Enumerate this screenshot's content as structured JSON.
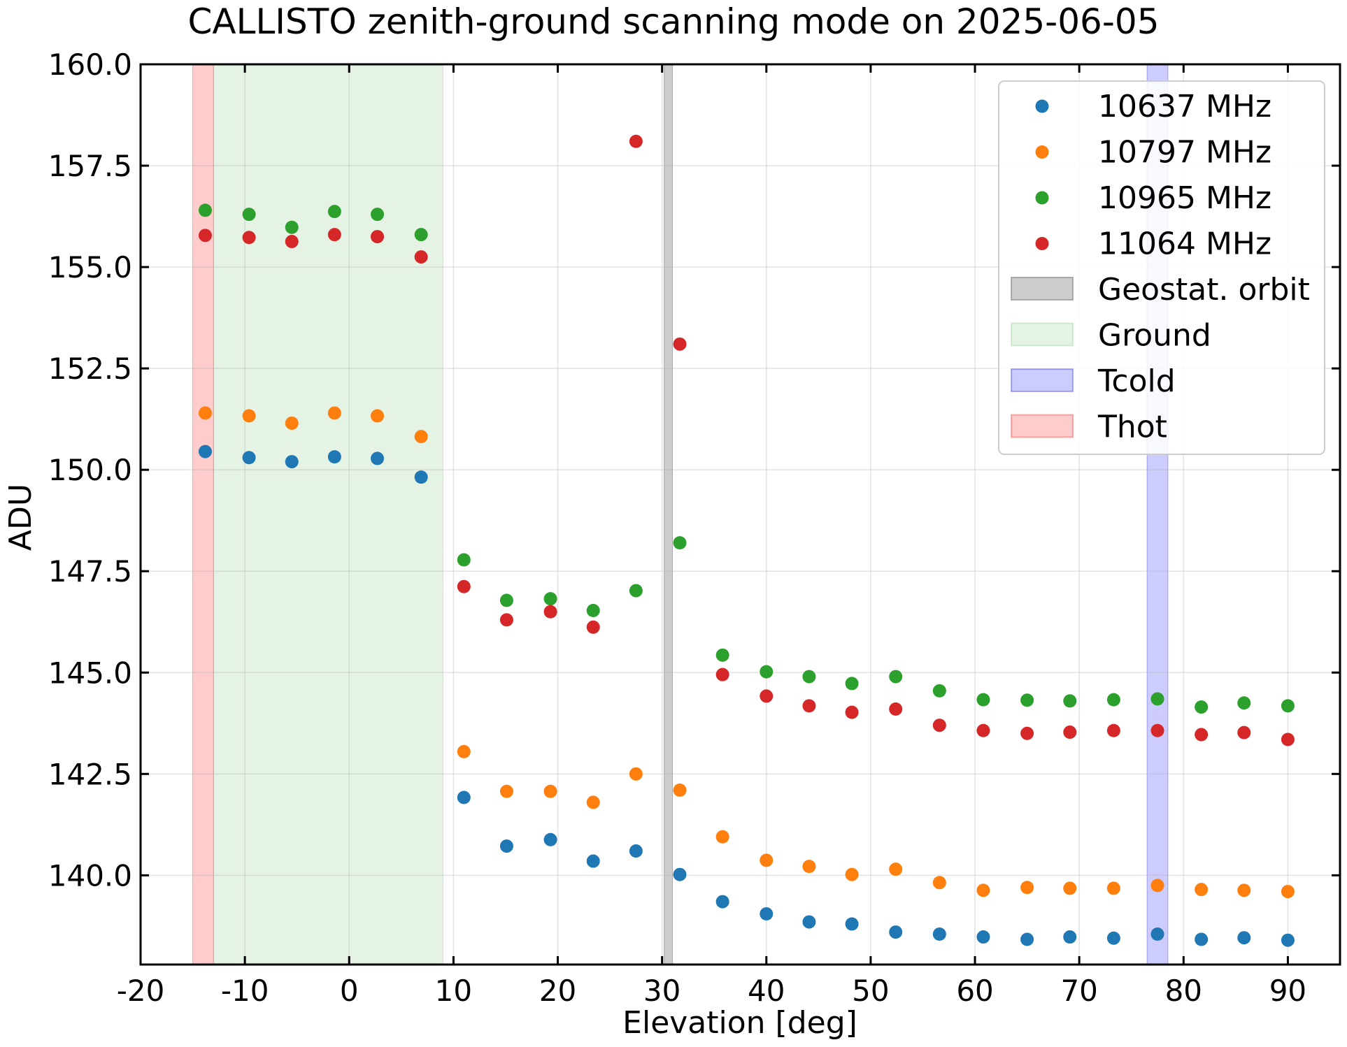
{
  "chart_data": {
    "type": "scatter",
    "title": "CALLISTO zenith-ground scanning mode on 2025-06-05",
    "xlabel": "Elevation [deg]",
    "ylabel": "ADU",
    "xlim": [
      -20,
      95
    ],
    "ylim": [
      137.8,
      160.0
    ],
    "xticks": [
      -20,
      -10,
      0,
      10,
      20,
      30,
      40,
      50,
      60,
      70,
      80,
      90
    ],
    "xtick_labels": [
      "-20",
      "-10",
      "0",
      "10",
      "20",
      "30",
      "40",
      "50",
      "60",
      "70",
      "80",
      "90"
    ],
    "yticks": [
      140.0,
      142.5,
      145.0,
      147.5,
      150.0,
      152.5,
      155.0,
      157.5,
      160.0
    ],
    "ytick_labels": [
      "140.0",
      "142.5",
      "145.0",
      "147.5",
      "150.0",
      "152.5",
      "155.0",
      "157.5",
      "160.0"
    ],
    "grid": true,
    "legend_position": "top-right",
    "x": [
      -13.8,
      -9.6,
      -5.5,
      -1.4,
      2.7,
      6.9,
      11.0,
      15.1,
      19.3,
      23.4,
      27.5,
      31.7,
      35.8,
      40.0,
      44.1,
      48.2,
      52.4,
      56.6,
      60.8,
      65.0,
      69.1,
      73.3,
      77.5,
      81.7,
      85.8,
      90.0
    ],
    "series": [
      {
        "name": "10637 MHz",
        "color": "#1f77b4",
        "values": [
          150.45,
          150.3,
          150.2,
          150.32,
          150.28,
          149.82,
          141.92,
          140.72,
          140.88,
          140.35,
          140.6,
          140.02,
          139.35,
          139.05,
          138.85,
          138.8,
          138.6,
          138.55,
          138.48,
          138.42,
          138.48,
          138.45,
          138.55,
          138.42,
          138.46,
          138.4
        ]
      },
      {
        "name": "10797 MHz",
        "color": "#ff7f0e",
        "values": [
          151.4,
          151.33,
          151.15,
          151.4,
          151.33,
          150.82,
          143.05,
          142.07,
          142.07,
          141.8,
          142.5,
          142.1,
          140.95,
          140.37,
          140.22,
          140.02,
          140.15,
          139.82,
          139.63,
          139.7,
          139.68,
          139.68,
          139.75,
          139.65,
          139.63,
          139.6
        ]
      },
      {
        "name": "10965 MHz",
        "color": "#2ca02c",
        "values": [
          156.4,
          156.3,
          155.98,
          156.37,
          156.3,
          155.8,
          147.78,
          146.78,
          146.82,
          146.53,
          147.02,
          148.2,
          145.43,
          145.02,
          144.9,
          144.73,
          144.9,
          144.55,
          144.33,
          144.32,
          144.3,
          144.33,
          144.35,
          144.15,
          144.25,
          144.18
        ]
      },
      {
        "name": "11064 MHz",
        "color": "#d62728",
        "values": [
          155.78,
          155.73,
          155.63,
          155.8,
          155.75,
          155.25,
          147.12,
          146.3,
          146.5,
          146.12,
          158.1,
          153.1,
          144.95,
          144.42,
          144.18,
          144.02,
          144.1,
          143.7,
          143.57,
          143.5,
          143.53,
          143.57,
          143.57,
          143.47,
          143.52,
          143.35
        ]
      }
    ],
    "spans": [
      {
        "name": "Geostat. orbit",
        "x0": 30.2,
        "x1": 31.0,
        "color": "#808080",
        "alpha": 0.4
      },
      {
        "name": "Ground",
        "x0": -13.0,
        "x1": 9.0,
        "color": "#2ca02c",
        "alpha": 0.12
      },
      {
        "name": "Tcold",
        "x0": 76.5,
        "x1": 78.5,
        "color": "#0000ff",
        "alpha": 0.2
      },
      {
        "name": "Thot",
        "x0": -15.0,
        "x1": -13.0,
        "color": "#ff0000",
        "alpha": 0.2
      }
    ]
  }
}
